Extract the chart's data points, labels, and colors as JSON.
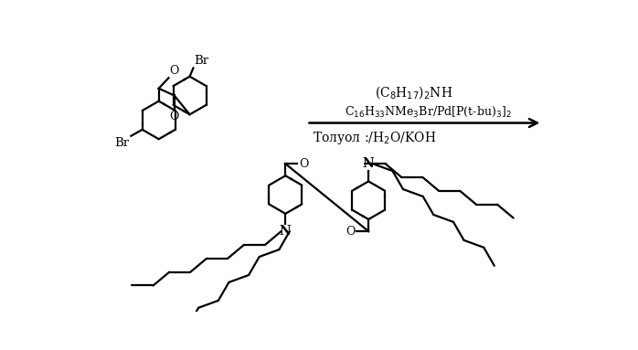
{
  "bg_color": "#ffffff",
  "line_color": "#000000",
  "lw": 1.6,
  "reagent_line1": "(C$_8$H$_{17}$)$_2$NH",
  "reagent_line2": "C$_{16}$H$_{33}$NMe$_3$Br/Pd[P(t-bu)$_3$]$_2$",
  "reagent_line3": "Толуол :/H$_2$O/KOH",
  "fs1": 10,
  "fs2": 9,
  "fs3": 10
}
